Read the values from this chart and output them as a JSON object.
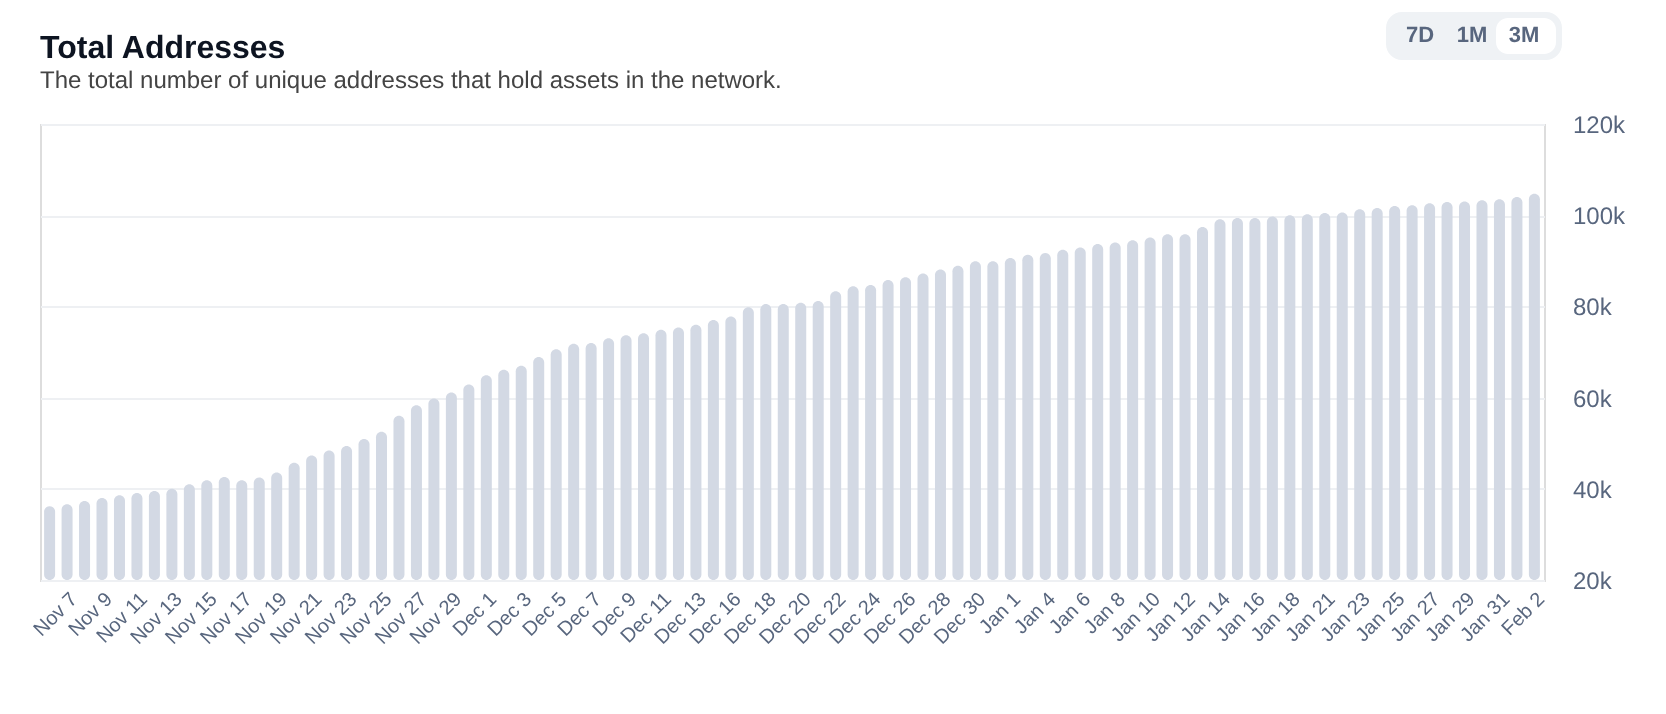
{
  "chart_data": {
    "type": "bar",
    "title": "Total Addresses",
    "subtitle": "The total number of unique addresses that hold assets in the network.",
    "categories": [
      null,
      "Nov 7",
      null,
      "Nov 9",
      null,
      "Nov 11",
      null,
      "Nov 13",
      null,
      "Nov 15",
      null,
      "Nov 17",
      null,
      "Nov 19",
      null,
      "Nov 21",
      null,
      "Nov 23",
      null,
      "Nov 25",
      null,
      "Nov 27",
      null,
      "Nov 29",
      null,
      "Dec 1",
      null,
      "Dec 3",
      null,
      "Dec 5",
      null,
      "Dec 7",
      null,
      "Dec 9",
      null,
      "Dec 11",
      null,
      "Dec 13",
      null,
      "Dec 16",
      null,
      "Dec 18",
      null,
      "Dec 20",
      null,
      "Dec 22",
      null,
      "Dec 24",
      null,
      "Dec 26",
      null,
      "Dec 28",
      null,
      "Dec 30",
      null,
      "Jan 1",
      null,
      "Jan 4",
      null,
      "Jan 6",
      null,
      "Jan 8",
      null,
      "Jan 10",
      null,
      "Jan 12",
      null,
      "Jan 14",
      null,
      "Jan 16",
      null,
      "Jan 18",
      null,
      "Jan 21",
      null,
      "Jan 23",
      null,
      "Jan 25",
      null,
      "Jan 27",
      null,
      "Jan 29",
      null,
      "Jan 31",
      null,
      "Feb 2"
    ],
    "values": [
      36200,
      36600,
      37300,
      38000,
      38600,
      39100,
      39500,
      40000,
      41000,
      41900,
      42600,
      41900,
      42500,
      43600,
      45700,
      47300,
      48400,
      49400,
      50900,
      52500,
      56000,
      58300,
      59800,
      61100,
      62900,
      64900,
      66100,
      67000,
      68900,
      70600,
      71800,
      72000,
      73000,
      73700,
      74100,
      74900,
      75400,
      76000,
      77000,
      77800,
      79800,
      80500,
      80500,
      80800,
      81200,
      83300,
      84400,
      84700,
      85800,
      86400,
      87200,
      88100,
      88900,
      89900,
      89900,
      90600,
      91300,
      91700,
      92400,
      92900,
      93700,
      94000,
      94500,
      95100,
      95800,
      95800,
      97400,
      99100,
      99400,
      99400,
      99700,
      100000,
      100200,
      100500,
      100600,
      101300,
      101600,
      102000,
      102200,
      102600,
      102900,
      103000,
      103300,
      103500,
      104000,
      104700
    ],
    "color": "#d3d9e4",
    "ylim": [
      20000,
      120000
    ],
    "yticks": [
      {
        "value": 20000,
        "label": "20k"
      },
      {
        "value": 40000,
        "label": "40k"
      },
      {
        "value": 60000,
        "label": "60k"
      },
      {
        "value": 80000,
        "label": "80k"
      },
      {
        "value": 100000,
        "label": "100k"
      },
      {
        "value": 120000,
        "label": "120k"
      }
    ],
    "grid": "y",
    "annotations": [
      "7D",
      "1M",
      "3M"
    ]
  }
}
